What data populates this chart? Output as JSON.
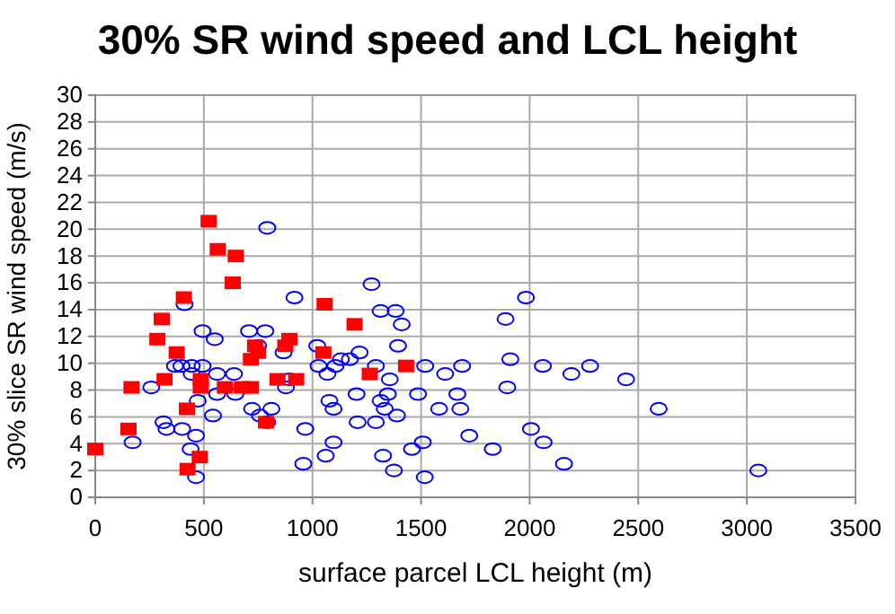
{
  "chart_data": {
    "type": "scatter",
    "title": "30% SR wind speed and LCL height",
    "xlabel": "surface parcel LCL height (m)",
    "ylabel": "30% slice SR wind speed (m/s)",
    "xlim": [
      0,
      3500
    ],
    "xticks": [
      0,
      500,
      1000,
      1500,
      2000,
      2500,
      3000,
      3500
    ],
    "ylim": [
      0,
      30
    ],
    "yticks": [
      0,
      2,
      4,
      6,
      8,
      10,
      12,
      14,
      16,
      18,
      20,
      22,
      24,
      26,
      28,
      30
    ],
    "grid": true,
    "series": [
      {
        "color": "#0000ff",
        "marker": "circle",
        "x": [
          172,
          258,
          314,
          328,
          367,
          397,
          400,
          411,
          439,
          444,
          444,
          464,
          464,
          472,
          494,
          494,
          542,
          550,
          561,
          561,
          639,
          645,
          708,
          722,
          750,
          758,
          783,
          792,
          792,
          811,
          867,
          878,
          894,
          917,
          967,
          958,
          1022,
          1028,
          1061,
          1069,
          1078,
          1097,
          1097,
          1106,
          1131,
          1172,
          1217,
          1203,
          1208,
          1272,
          1292,
          1292,
          1314,
          1314,
          1325,
          1333,
          1347,
          1356,
          1375,
          1383,
          1389,
          1394,
          1411,
          1458,
          1486,
          1508,
          1517,
          1519,
          1611,
          1583,
          1667,
          1681,
          1689,
          1722,
          1830,
          1889,
          1897,
          1911,
          1983,
          2006,
          2061,
          2064,
          2158,
          2192,
          2278,
          2444,
          2594,
          3053
        ],
        "values": [
          4.1,
          8.2,
          5.6,
          5.1,
          9.8,
          9.8,
          5.1,
          14.4,
          3.6,
          9.8,
          9.2,
          4.6,
          1.5,
          7.2,
          9.8,
          12.4,
          6.1,
          11.8,
          9.2,
          7.7,
          9.2,
          7.7,
          12.4,
          6.6,
          11.3,
          6.1,
          12.4,
          20.1,
          5.6,
          6.6,
          10.8,
          8.2,
          8.8,
          14.9,
          5.1,
          2.5,
          11.3,
          9.8,
          3.1,
          9.2,
          7.2,
          6.6,
          4.1,
          9.8,
          10.3,
          10.3,
          10.8,
          7.7,
          5.6,
          15.9,
          9.8,
          5.6,
          13.9,
          7.2,
          3.1,
          6.6,
          7.7,
          8.8,
          2.0,
          13.9,
          6.1,
          11.3,
          12.9,
          3.6,
          7.7,
          4.1,
          1.5,
          9.8,
          9.2,
          6.6,
          7.7,
          6.6,
          9.8,
          4.6,
          3.6,
          13.3,
          8.2,
          10.3,
          14.9,
          5.1,
          9.8,
          4.1,
          2.5,
          9.2,
          9.8,
          8.8,
          6.6,
          2.0
        ]
      },
      {
        "color": "#ff0000",
        "marker": "square",
        "x": [
          0,
          153,
          167,
          286,
          306,
          319,
          375,
          408,
          422,
          425,
          481,
          486,
          486,
          522,
          564,
          597,
          633,
          647,
          675,
          717,
          717,
          736,
          750,
          786,
          839,
          875,
          894,
          925,
          1056,
          1050,
          1194,
          1264,
          1431
        ],
        "values": [
          3.6,
          5.1,
          8.2,
          11.8,
          13.3,
          8.8,
          10.8,
          14.9,
          6.6,
          2.1,
          3.0,
          8.2,
          8.8,
          20.6,
          18.5,
          8.2,
          16.0,
          18.0,
          8.2,
          8.2,
          10.3,
          11.3,
          10.8,
          5.6,
          8.8,
          11.3,
          11.8,
          8.8,
          14.4,
          10.8,
          12.9,
          9.2,
          9.8
        ]
      }
    ]
  }
}
